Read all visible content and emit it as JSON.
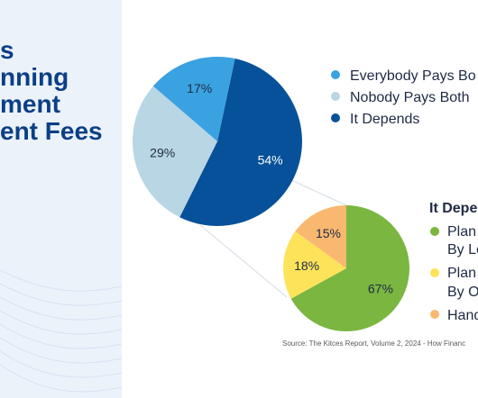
{
  "title_lines": [
    "s",
    "nning",
    "ment",
    "ent Fees"
  ],
  "colors": {
    "panel_bg": "#ecf2fa",
    "title": "#0b3f86",
    "everybody": "#3aa2e0",
    "nobody": "#b9d6e4",
    "depends": "#07519a",
    "green": "#7ab640",
    "yellow": "#fde35a",
    "orange": "#f9b870"
  },
  "chart_data": [
    {
      "type": "pie",
      "slices": [
        {
          "label": "Everybody Pays Bo",
          "value": 17,
          "value_label": "17%",
          "color": "#3aa2e0"
        },
        {
          "label": "Nobody Pays Both",
          "value": 29,
          "value_label": "29%",
          "color": "#b9d6e4"
        },
        {
          "label": "It Depends",
          "value": 54,
          "value_label": "54%",
          "color": "#07519a"
        }
      ]
    },
    {
      "type": "pie",
      "title": "It Depe",
      "slices": [
        {
          "label_lines": [
            "Plan",
            "By Le"
          ],
          "value": 67,
          "value_label": "67%",
          "color": "#7ab640"
        },
        {
          "label_lines": [
            "Plan",
            "By O"
          ],
          "value": 18,
          "value_label": "18%",
          "color": "#fde35a"
        },
        {
          "label_lines": [
            "Hand"
          ],
          "value": 15,
          "value_label": "15%",
          "color": "#f9b870"
        }
      ]
    }
  ],
  "source": "Source: The Kitces Report, Volume 2, 2024 - How Financ"
}
